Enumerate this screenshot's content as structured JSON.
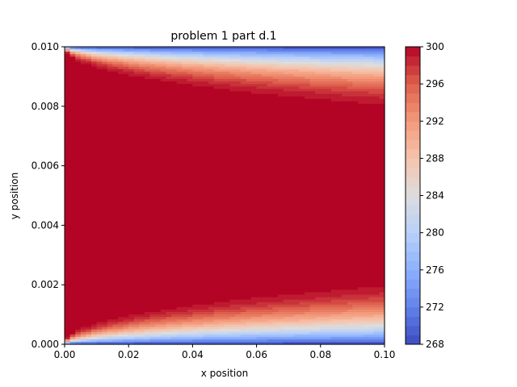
{
  "chart_data": {
    "type": "heatmap",
    "title": "problem 1 part d.1",
    "xlabel": "x position",
    "ylabel": "y position",
    "xlim": [
      0.0,
      0.1
    ],
    "ylim": [
      0.0,
      0.01
    ],
    "x_ticks": [
      0.0,
      0.02,
      0.04,
      0.06,
      0.08,
      0.1
    ],
    "x_tick_labels": [
      "0.00",
      "0.02",
      "0.04",
      "0.06",
      "0.08",
      "0.10"
    ],
    "y_ticks": [
      0.0,
      0.002,
      0.004,
      0.006,
      0.008,
      0.01
    ],
    "y_tick_labels": [
      "0.000",
      "0.002",
      "0.004",
      "0.006",
      "0.008",
      "0.010"
    ],
    "colormap": "coolwarm",
    "colorbar": {
      "vmin": 268,
      "vmax": 300,
      "levels": 33,
      "ticks": [
        268,
        272,
        276,
        280,
        284,
        288,
        292,
        296,
        300
      ],
      "tick_labels": [
        "268",
        "272",
        "276",
        "280",
        "284",
        "288",
        "292",
        "296",
        "300"
      ],
      "placement": "right"
    },
    "field": {
      "description": "temperature field, cooled at y walls, boundary layer grows along x",
      "center_value": 300,
      "wall_value": 268,
      "boundary_layer_thickness_at_x_end": 0.0023
    },
    "grid": false
  }
}
